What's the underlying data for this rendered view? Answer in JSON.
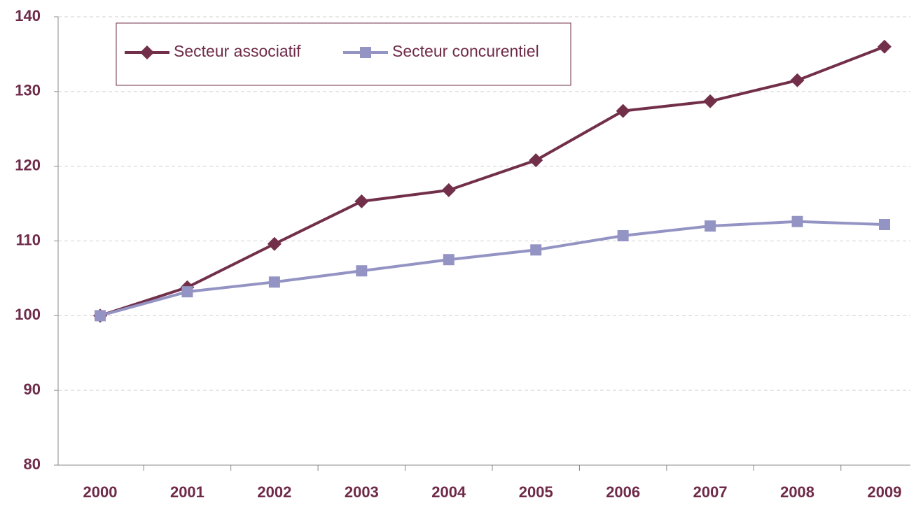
{
  "chart_data": {
    "type": "line",
    "categories": [
      "2000",
      "2001",
      "2002",
      "2003",
      "2004",
      "2005",
      "2006",
      "2007",
      "2008",
      "2009"
    ],
    "series": [
      {
        "name": "Secteur associatif",
        "color": "#722f4a",
        "marker": "diamond",
        "values": [
          100,
          103.8,
          109.6,
          115.3,
          116.8,
          120.8,
          127.4,
          128.7,
          131.5,
          136.0
        ]
      },
      {
        "name": "Secteur concurentiel",
        "color": "#9494c4",
        "marker": "square",
        "values": [
          100,
          103.2,
          104.5,
          106.0,
          107.5,
          108.8,
          110.7,
          112.0,
          112.6,
          112.2
        ]
      }
    ],
    "ylim": [
      80,
      140
    ],
    "yticks": [
      80,
      90,
      100,
      110,
      120,
      130,
      140
    ],
    "grid": true
  }
}
